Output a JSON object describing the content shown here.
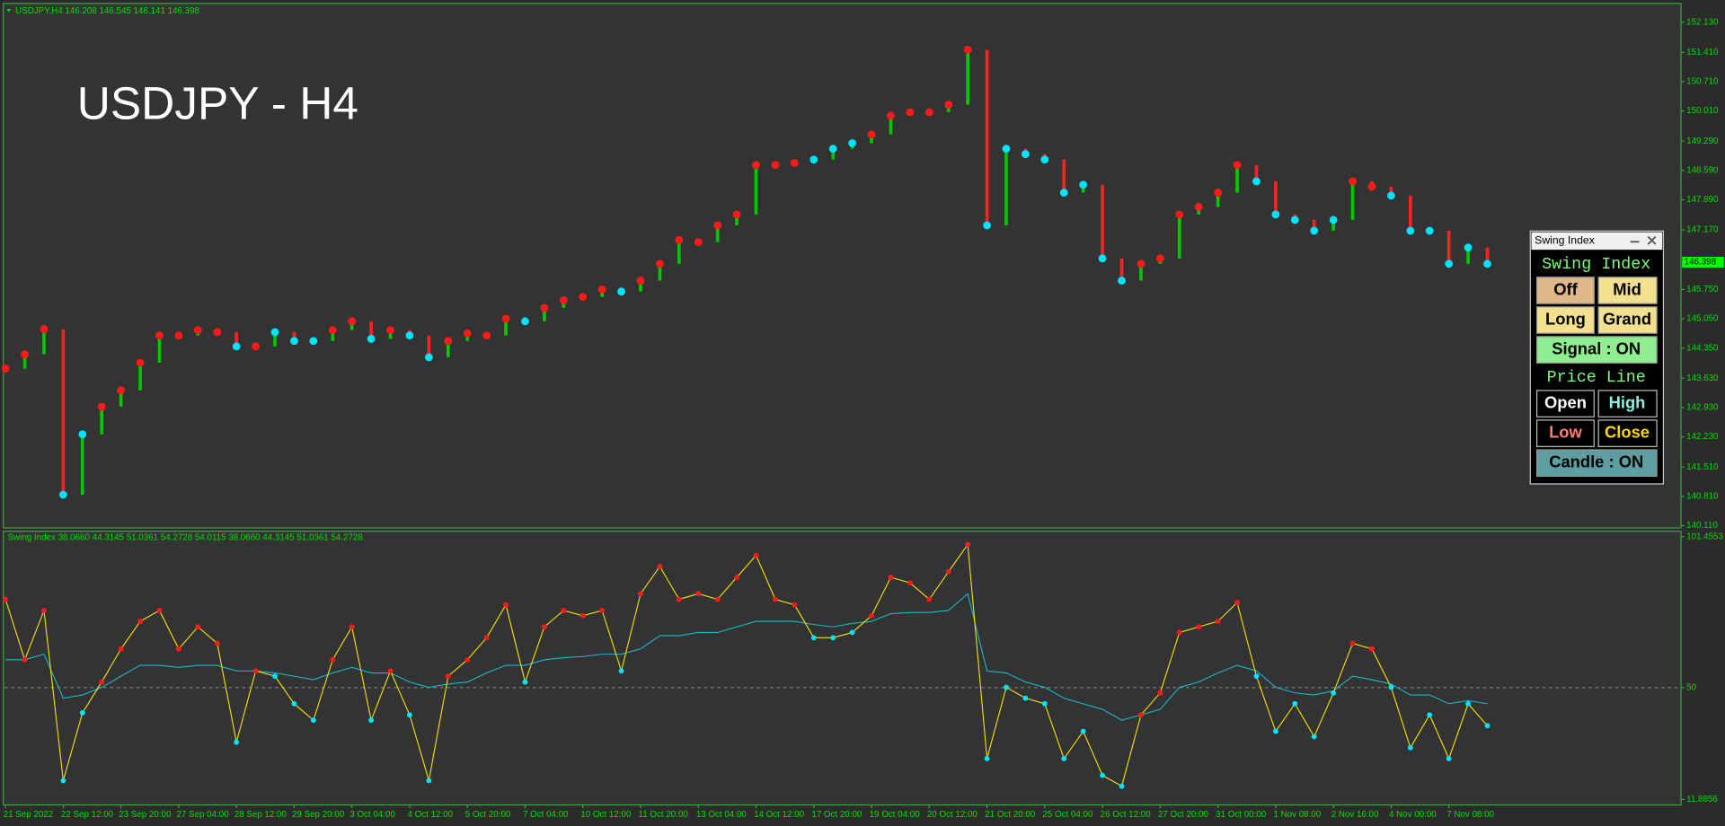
{
  "header": {
    "symbol_info": "USDJPY,H4  146.208 146.545 146.141 146.398",
    "chart_label": "USDJPY - H4"
  },
  "price_chart": {
    "type": "line",
    "up_color": "#00c800",
    "down_color": "#ff2020",
    "categories": [
      "21 Sep 2022",
      null,
      null,
      "22 Sep 12:00",
      null,
      null,
      "23 Sep 20:00",
      null,
      null,
      "27 Sep 04:00",
      null,
      null,
      "28 Sep 12:00",
      null,
      null,
      "29 Sep 20:00",
      null,
      null,
      "3 Oct 04:00",
      null,
      null,
      "4 Oct 12:00",
      null,
      null,
      "5 Oct 20:00",
      null,
      null,
      "7 Oct 04:00",
      null,
      null,
      "10 Oct 12:00",
      null,
      null,
      "11 Oct 20:00",
      null,
      null,
      "13 Oct 04:00",
      null,
      null,
      "14 Oct 12:00",
      null,
      null,
      "17 Oct 20:00",
      null,
      null,
      "19 Oct 04:00",
      null,
      null,
      "20 Oct 12:00",
      null,
      null,
      "21 Oct 20:00",
      null,
      null,
      "25 Oct 04:00",
      null,
      null,
      "26 Oct 12:00",
      null,
      null,
      "27 Oct 20:00",
      null,
      null,
      "31 Oct 00:00",
      null,
      null,
      "1 Nov 08:00",
      null,
      null,
      "2 Nov 16:00",
      null,
      null,
      "4 Nov 00:00",
      null,
      null,
      "7 Nov 08:00",
      null,
      null
    ],
    "values": [
      143.86,
      144.2,
      144.8,
      140.85,
      142.29,
      142.95,
      143.34,
      144.0,
      144.65,
      144.65,
      144.78,
      144.73,
      144.39,
      144.39,
      144.73,
      144.52,
      144.52,
      144.78,
      144.99,
      144.57,
      144.78,
      144.65,
      144.13,
      144.52,
      144.7,
      144.65,
      145.05,
      144.99,
      145.31,
      145.49,
      145.57,
      145.75,
      145.7,
      145.96,
      146.36,
      146.93,
      146.88,
      147.28,
      147.54,
      148.72,
      148.72,
      148.77,
      148.85,
      149.11,
      149.24,
      149.45,
      149.9,
      149.98,
      149.98,
      150.16,
      151.47,
      147.28,
      149.11,
      148.98,
      148.85,
      148.06,
      148.25,
      146.49,
      145.96,
      146.36,
      146.49,
      147.54,
      147.72,
      148.06,
      148.72,
      148.33,
      147.54,
      147.41,
      147.15,
      147.41,
      148.33,
      148.2,
      147.99,
      147.15,
      147.15,
      146.36,
      146.75,
      146.36
    ],
    "ylim": [
      140.11,
      152.13
    ],
    "yticks": [
      {
        "value": 152.13,
        "label": "152.130"
      },
      {
        "value": 151.41,
        "label": "151.410"
      },
      {
        "value": 150.71,
        "label": "150.710"
      },
      {
        "value": 150.01,
        "label": "150.010"
      },
      {
        "value": 149.29,
        "label": "149.290"
      },
      {
        "value": 148.59,
        "label": "148.590"
      },
      {
        "value": 147.89,
        "label": "147.890"
      },
      {
        "value": 147.17,
        "label": "147.170"
      },
      {
        "value": 145.75,
        "label": "145.750"
      },
      {
        "value": 145.05,
        "label": "145.050"
      },
      {
        "value": 144.35,
        "label": "144.350"
      },
      {
        "value": 143.63,
        "label": "143.630"
      },
      {
        "value": 142.93,
        "label": "142.930"
      },
      {
        "value": 142.23,
        "label": "142.230"
      },
      {
        "value": 141.51,
        "label": "141.510"
      },
      {
        "value": 140.81,
        "label": "140.810"
      },
      {
        "value": 140.11,
        "label": "140.110"
      }
    ],
    "current_price": {
      "value": 146.398,
      "label": "146.398"
    }
  },
  "indicator": {
    "type": "line",
    "title": "Swing Index 38.0660 44.3145 51.0361 54.2728 54.0115 38.0660 44.3145 51.0361 54.2728",
    "up_color": "#ff1a1a",
    "down_color": "#00e5ff",
    "series": [
      {
        "color": "#f5e400",
        "values": [
          80.1,
          59.5,
          76.3,
          18.3,
          41.4,
          51.9,
          63.2,
          72.6,
          76.3,
          63.2,
          70.7,
          65.1,
          31.4,
          55.7,
          53.9,
          44.5,
          38.9,
          59.5,
          70.7,
          38.9,
          55.7,
          40.7,
          18.3,
          53.9,
          59.5,
          67.0,
          78.2,
          51.9,
          70.7,
          76.3,
          74.5,
          76.3,
          55.7,
          82.0,
          91.3,
          80.1,
          82.0,
          80.1,
          87.6,
          95.1,
          80.1,
          78.2,
          67.0,
          67.0,
          68.8,
          74.5,
          87.6,
          85.7,
          80.1,
          89.5,
          98.8,
          25.8,
          50.1,
          46.4,
          44.5,
          25.8,
          35.1,
          20.1,
          16.4,
          40.7,
          48.2,
          68.8,
          70.7,
          72.6,
          79.0,
          53.9,
          35.1,
          44.5,
          33.3,
          48.2,
          65.1,
          63.2,
          50.1,
          29.5,
          40.7,
          25.8,
          44.5,
          37.0
        ]
      },
      {
        "color": "#19b8cc",
        "values": [
          59.5,
          59.5,
          61.4,
          46.4,
          47.5,
          50.1,
          53.9,
          57.6,
          57.6,
          56.9,
          57.6,
          57.6,
          55.7,
          55.7,
          55.0,
          53.9,
          52.7,
          55.0,
          56.9,
          55.0,
          55.0,
          51.9,
          50.1,
          51.2,
          51.9,
          55.0,
          57.6,
          57.6,
          59.5,
          60.2,
          60.6,
          61.4,
          61.4,
          63.2,
          67.7,
          67.7,
          68.8,
          68.8,
          70.7,
          72.6,
          72.6,
          72.6,
          71.5,
          70.7,
          71.9,
          72.6,
          75.2,
          75.6,
          75.6,
          76.3,
          82.0,
          55.7,
          55.0,
          51.9,
          50.1,
          46.4,
          44.5,
          42.6,
          38.9,
          40.7,
          42.6,
          50.1,
          51.9,
          55.0,
          57.6,
          55.7,
          50.1,
          48.2,
          47.5,
          48.9,
          53.9,
          52.7,
          51.2,
          47.5,
          47.5,
          44.5,
          45.6,
          44.5
        ]
      }
    ],
    "ylim": [
      11.8856,
      101.4553
    ],
    "yticks": [
      101.4553,
      50,
      11.8856
    ],
    "level": 50
  },
  "panel": {
    "window_title": "Swing Index",
    "section1": "Swing Index",
    "buttons1": [
      "Off",
      "Mid",
      "Long",
      "Grand"
    ],
    "signal": "Signal : ON",
    "section2": "Price Line",
    "buttons2": [
      "Open",
      "High",
      "Low",
      "Close"
    ],
    "candle": "Candle : ON"
  }
}
